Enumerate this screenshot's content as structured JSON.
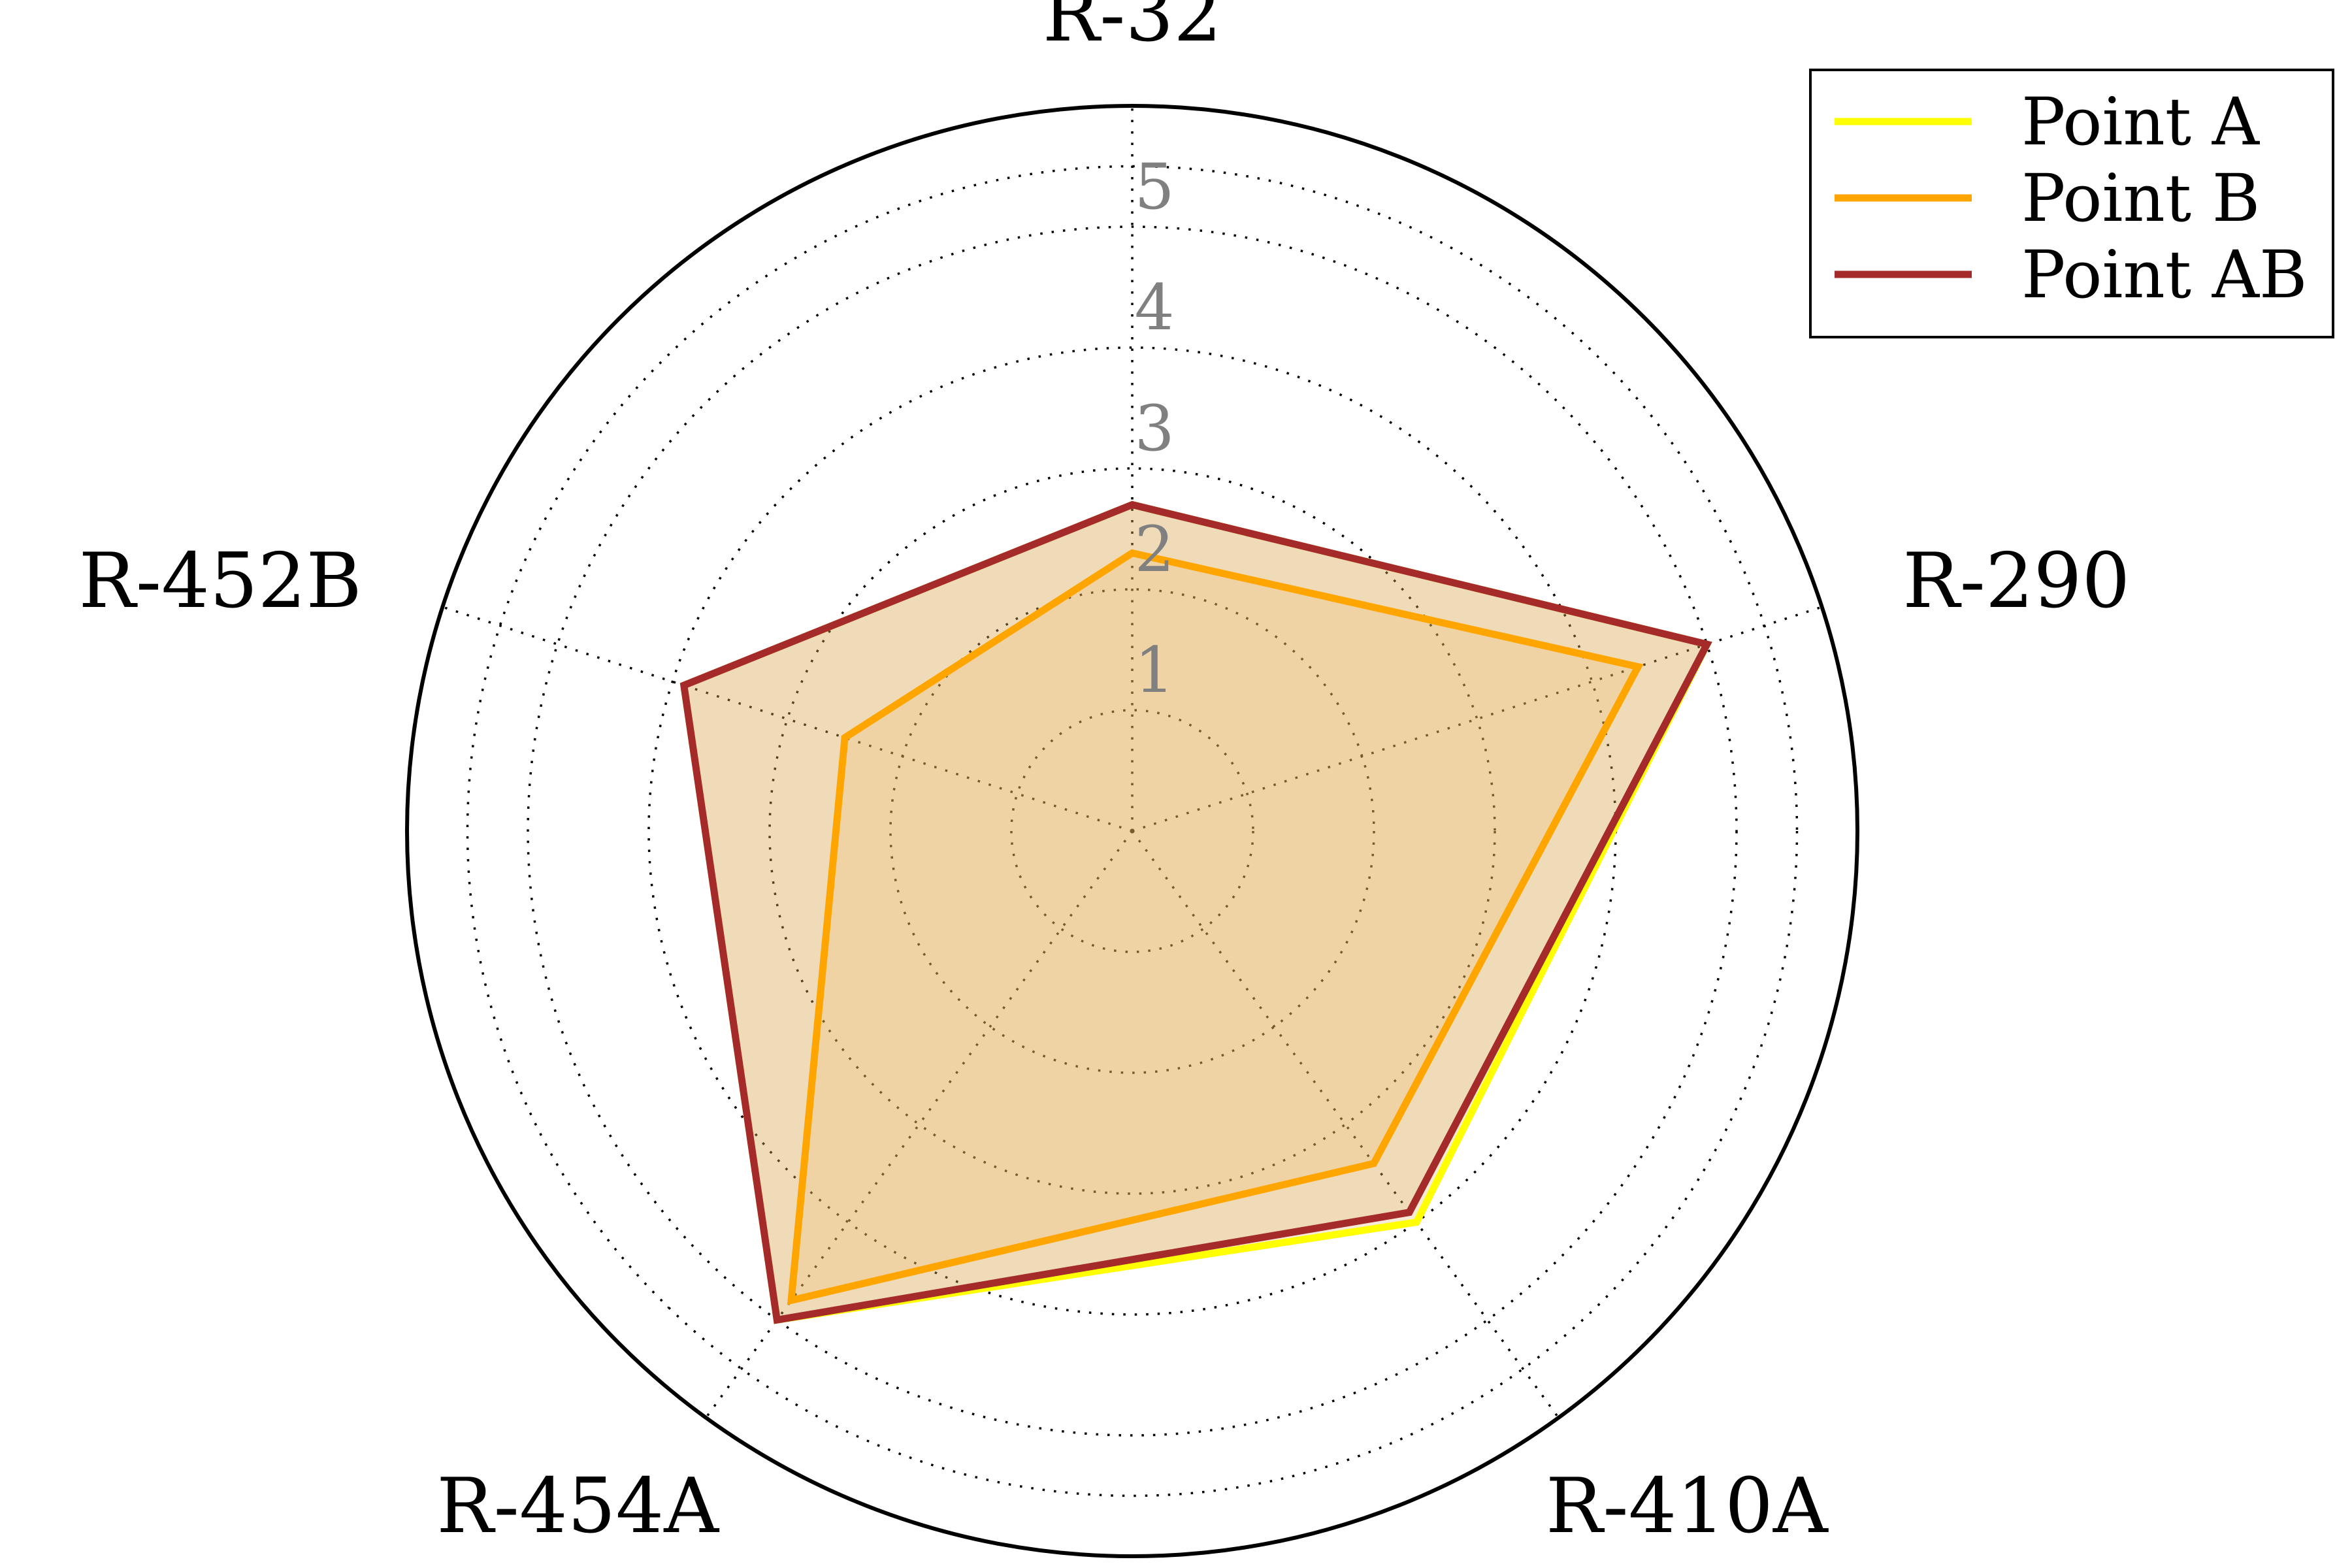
{
  "chart_data": {
    "type": "radar",
    "axes": [
      "R-32",
      "R-290",
      "R-410A",
      "R-454A",
      "R-452B"
    ],
    "rlim": [
      0,
      6
    ],
    "ticks": [
      1,
      2,
      3,
      4,
      5
    ],
    "tick_labels": [
      "1",
      "2",
      "3",
      "4",
      "5"
    ],
    "grid": true,
    "legend_position": "top-right",
    "series": [
      {
        "name": "Point A",
        "values": [
          2.7,
          5.0,
          4.0,
          5.0,
          3.9
        ],
        "color": "#ffff00",
        "fill": "#d9a54c"
      },
      {
        "name": "Point B",
        "values": [
          2.3,
          4.4,
          3.4,
          4.8,
          2.5
        ],
        "color": "#ffa500",
        "fill": "#f5c060"
      },
      {
        "name": "Point AB",
        "values": [
          2.7,
          5.0,
          3.9,
          5.0,
          3.9
        ],
        "color": "#a52a2a",
        "fill": "#d9a54c"
      }
    ]
  }
}
